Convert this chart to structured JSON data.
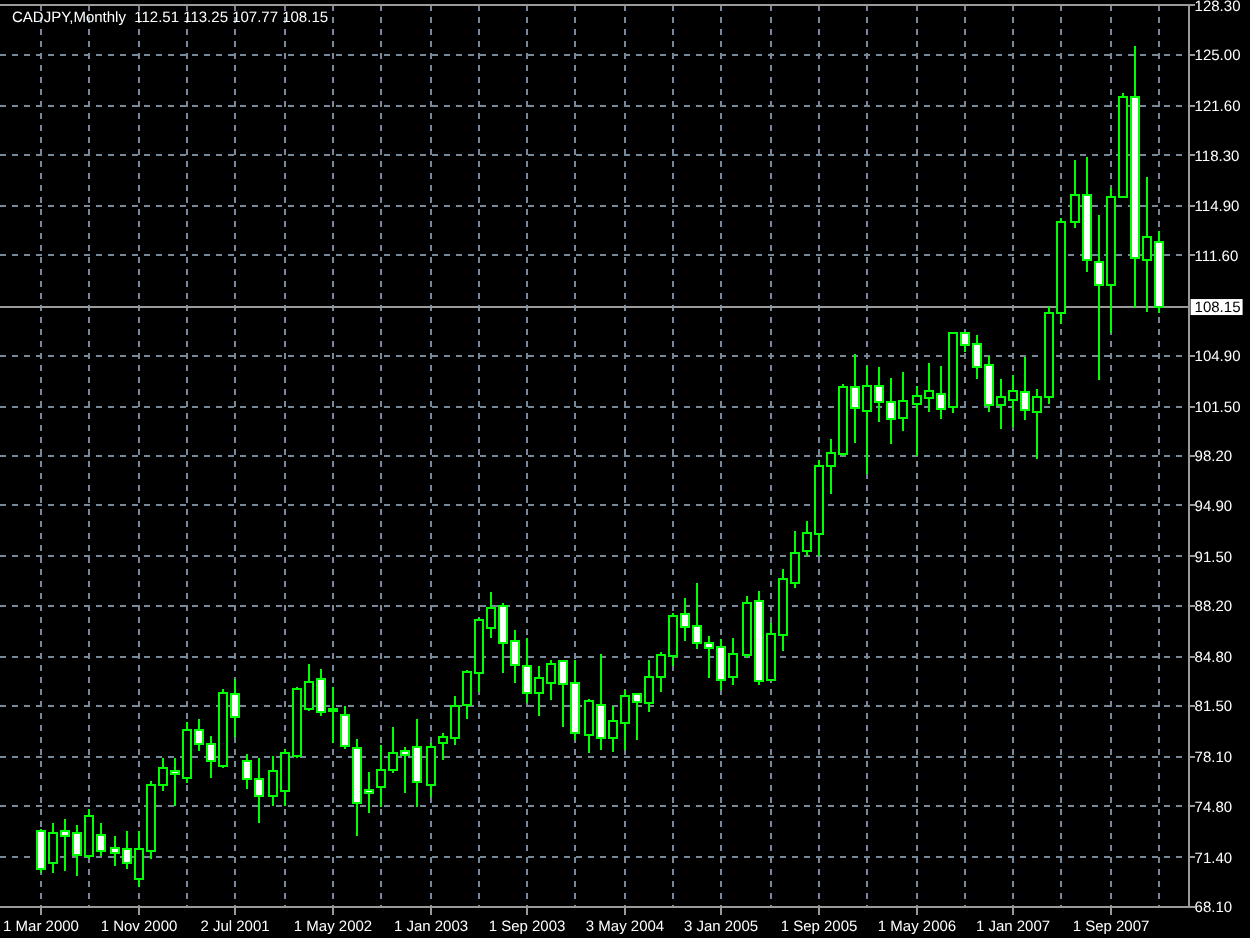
{
  "chart_data": {
    "type": "candlestick",
    "title": "CADJPY,Monthly  112.51 113.25 107.77 108.15",
    "categories": [
      "1 Mar 2000",
      null,
      null,
      null,
      null,
      null,
      null,
      null,
      "1 Nov 2000",
      null,
      null,
      null,
      null,
      null,
      null,
      null,
      "2 Jul 2001",
      null,
      null,
      null,
      null,
      null,
      null,
      null,
      "1 May 2002",
      null,
      null,
      null,
      null,
      null,
      null,
      null,
      "1 Jan 2003",
      null,
      null,
      null,
      null,
      null,
      null,
      null,
      "1 Sep 2003",
      null,
      null,
      null,
      null,
      null,
      null,
      null,
      "3 May 2004",
      null,
      null,
      null,
      null,
      null,
      null,
      null,
      "3 Jan 2005",
      null,
      null,
      null,
      null,
      null,
      null,
      null,
      "1 Sep 2005",
      null,
      null,
      null,
      null,
      null,
      null,
      null,
      "1 May 2006",
      null,
      null,
      null,
      null,
      null,
      null,
      null,
      "1 Jan 2007",
      null,
      null,
      null,
      null,
      null,
      null,
      null,
      "1 Sep 2007",
      null,
      null,
      null,
      null
    ],
    "ohlc": [
      [
        73.13,
        73.3,
        70.36,
        70.59
      ],
      [
        71.03,
        73.71,
        70.36,
        73.04
      ],
      [
        73.13,
        73.93,
        70.5,
        72.82
      ],
      [
        73.04,
        73.57,
        70.14,
        71.57
      ],
      [
        71.48,
        74.6,
        71.26,
        74.15
      ],
      [
        72.9,
        73.71,
        71.48,
        71.79
      ],
      [
        72.01,
        72.82,
        70.81,
        71.7
      ],
      [
        71.92,
        73.13,
        70.59,
        71.03
      ],
      [
        69.92,
        73.13,
        69.38,
        71.92
      ],
      [
        71.84,
        76.47,
        71.26,
        76.25
      ],
      [
        76.25,
        78.03,
        75.8,
        77.36
      ],
      [
        77.19,
        78.03,
        74.82,
        76.96
      ],
      [
        76.7,
        80.4,
        76.38,
        79.91
      ],
      [
        79.91,
        80.62,
        78.48,
        78.93
      ],
      [
        78.93,
        79.5,
        76.7,
        77.81
      ],
      [
        77.5,
        82.63,
        77.36,
        82.4
      ],
      [
        82.31,
        83.3,
        79.42,
        80.75
      ],
      [
        77.81,
        78.3,
        75.94,
        76.61
      ],
      [
        76.61,
        78.03,
        73.71,
        75.49
      ],
      [
        75.49,
        78.17,
        74.82,
        77.14
      ],
      [
        75.8,
        78.61,
        74.82,
        78.39
      ],
      [
        78.17,
        82.76,
        78.03,
        82.63
      ],
      [
        81.29,
        84.28,
        81.15,
        83.07
      ],
      [
        83.3,
        83.96,
        80.84,
        81.07
      ],
      [
        81.29,
        82.76,
        79.06,
        81.15
      ],
      [
        80.93,
        81.51,
        78.61,
        78.84
      ],
      [
        78.7,
        79.28,
        72.82,
        75.05
      ],
      [
        75.89,
        77.1,
        74.33,
        75.67
      ],
      [
        76.12,
        78.88,
        74.78,
        77.23
      ],
      [
        77.23,
        80.13,
        77.01,
        78.35
      ],
      [
        78.48,
        78.79,
        75.67,
        78.21
      ],
      [
        78.79,
        80.66,
        74.78,
        76.43
      ],
      [
        76.25,
        79.01,
        75.45,
        78.79
      ],
      [
        79.01,
        79.68,
        77.9,
        79.46
      ],
      [
        79.37,
        82.14,
        78.88,
        81.47
      ],
      [
        81.56,
        83.92,
        80.66,
        83.79
      ],
      [
        83.7,
        87.35,
        82.45,
        87.26
      ],
      [
        86.73,
        89.14,
        86.02,
        88.07
      ],
      [
        88.16,
        88.38,
        83.7,
        85.7
      ],
      [
        85.84,
        86.6,
        83.03,
        84.23
      ],
      [
        84.14,
        86.02,
        81.69,
        82.36
      ],
      [
        82.36,
        84.14,
        80.8,
        83.38
      ],
      [
        83.03,
        84.59,
        81.91,
        84.28
      ],
      [
        84.5,
        84.59,
        80.13,
        82.98
      ],
      [
        83.03,
        84.59,
        79.24,
        79.68
      ],
      [
        79.55,
        82.0,
        78.35,
        81.82
      ],
      [
        81.6,
        84.95,
        78.57,
        79.33
      ],
      [
        79.33,
        81.47,
        78.44,
        80.49
      ],
      [
        80.35,
        82.58,
        78.57,
        82.14
      ],
      [
        82.27,
        82.36,
        79.24,
        81.78
      ],
      [
        81.69,
        84.59,
        81.11,
        83.47
      ],
      [
        83.47,
        85.12,
        82.45,
        84.9
      ],
      [
        84.81,
        87.71,
        84.14,
        87.49
      ],
      [
        87.64,
        88.71,
        85.86,
        86.75
      ],
      [
        86.84,
        89.74,
        85.28,
        85.73
      ],
      [
        85.73,
        86.17,
        83.36,
        85.37
      ],
      [
        85.41,
        85.95,
        82.6,
        83.27
      ],
      [
        83.41,
        86.04,
        82.92,
        84.97
      ],
      [
        84.92,
        88.85,
        84.7,
        88.4
      ],
      [
        88.54,
        89.16,
        82.92,
        83.18
      ],
      [
        83.27,
        87.06,
        83.14,
        86.31
      ],
      [
        86.26,
        90.63,
        85.15,
        89.96
      ],
      [
        89.74,
        93.17,
        89.38,
        91.75
      ],
      [
        91.83,
        93.84,
        91.52,
        93.08
      ],
      [
        92.99,
        97.9,
        91.52,
        97.54
      ],
      [
        97.54,
        99.33,
        95.63,
        98.43
      ],
      [
        98.35,
        102.98,
        98.21,
        102.8
      ],
      [
        102.8,
        105.03,
        99.1,
        101.42
      ],
      [
        101.2,
        104.23,
        97.01,
        102.89
      ],
      [
        102.89,
        104.14,
        100.44,
        101.78
      ],
      [
        101.78,
        103.43,
        98.97,
        100.66
      ],
      [
        100.75,
        103.79,
        99.86,
        101.87
      ],
      [
        101.65,
        102.89,
        98.21,
        102.22
      ],
      [
        102.09,
        104.41,
        101.11,
        102.54
      ],
      [
        102.36,
        104.23,
        100.66,
        101.33
      ],
      [
        101.46,
        106.5,
        101.05,
        106.41
      ],
      [
        106.41,
        106.5,
        105.16,
        105.6
      ],
      [
        105.69,
        106.27,
        103.37,
        104.13
      ],
      [
        104.27,
        104.85,
        101.14,
        101.59
      ],
      [
        101.59,
        103.37,
        100.03,
        102.13
      ],
      [
        101.95,
        103.6,
        100.16,
        102.57
      ],
      [
        102.48,
        104.8,
        100.61,
        101.28
      ],
      [
        101.14,
        102.7,
        98.02,
        102.13
      ],
      [
        102.13,
        108.19,
        101.68,
        107.74
      ],
      [
        107.74,
        114.08,
        107.03,
        113.85
      ],
      [
        113.85,
        118.0,
        113.41,
        115.64
      ],
      [
        115.64,
        118.18,
        110.51,
        111.27
      ],
      [
        111.18,
        114.3,
        103.28,
        109.62
      ],
      [
        109.62,
        116.08,
        106.41,
        115.5
      ],
      [
        115.5,
        122.46,
        115.41,
        122.19
      ],
      [
        122.19,
        125.58,
        108.06,
        111.4
      ],
      [
        111.27,
        116.84,
        107.83,
        112.83
      ],
      [
        112.51,
        113.25,
        107.77,
        108.15
      ]
    ],
    "color": "#00ff00",
    "colors": [
      "#ffffff",
      "#000000",
      "#ffffff",
      "#ffffff",
      "#000000",
      "#ffffff",
      "#ffffff",
      "#ffffff",
      "#000000",
      "#000000",
      "#000000",
      "#ffffff",
      "#000000",
      "#ffffff",
      "#ffffff",
      "#000000",
      "#ffffff",
      "#ffffff",
      "#ffffff",
      "#000000",
      "#000000",
      "#000000",
      "#000000",
      "#ffffff",
      "#ffffff",
      "#ffffff",
      "#ffffff",
      "#ffffff",
      "#000000",
      "#000000",
      "#ffffff",
      "#ffffff",
      "#000000",
      "#000000",
      "#000000",
      "#000000",
      "#000000",
      "#000000",
      "#ffffff",
      "#ffffff",
      "#ffffff",
      "#000000",
      "#000000",
      "#ffffff",
      "#ffffff",
      "#000000",
      "#ffffff",
      "#000000",
      "#000000",
      "#ffffff",
      "#000000",
      "#000000",
      "#000000",
      "#ffffff",
      "#ffffff",
      "#ffffff",
      "#ffffff",
      "#000000",
      "#000000",
      "#ffffff",
      "#000000",
      "#000000",
      "#000000",
      "#000000",
      "#000000",
      "#000000",
      "#000000",
      "#ffffff",
      "#000000",
      "#ffffff",
      "#ffffff",
      "#000000",
      "#000000",
      "#000000",
      "#ffffff",
      "#000000",
      "#ffffff",
      "#ffffff",
      "#ffffff",
      "#000000",
      "#000000",
      "#ffffff",
      "#000000",
      "#000000",
      "#000000",
      "#000000",
      "#ffffff",
      "#ffffff",
      "#000000",
      "#000000",
      "#ffffff",
      "#000000",
      "#ffffff"
    ],
    "ylim": [
      68.1,
      128.3
    ],
    "yticks": [
      {
        "value": 68.1,
        "label": "68.10"
      },
      {
        "value": 71.4,
        "label": "71.40"
      },
      {
        "value": 74.8,
        "label": "74.80"
      },
      {
        "value": 78.1,
        "label": "78.10"
      },
      {
        "value": 81.5,
        "label": "81.50"
      },
      {
        "value": 84.8,
        "label": "84.80"
      },
      {
        "value": 88.2,
        "label": "88.20"
      },
      {
        "value": 91.5,
        "label": "91.50"
      },
      {
        "value": 94.9,
        "label": "94.90"
      },
      {
        "value": 98.2,
        "label": "98.20"
      },
      {
        "value": 101.5,
        "label": "101.50"
      },
      {
        "value": 104.9,
        "label": "104.90"
      },
      {
        "value": 111.6,
        "label": "111.60"
      },
      {
        "value": 114.9,
        "label": "114.90"
      },
      {
        "value": 118.3,
        "label": "118.30"
      },
      {
        "value": 121.6,
        "label": "121.60"
      },
      {
        "value": 125.0,
        "label": "125.00"
      },
      {
        "value": 128.3,
        "label": "128.30"
      }
    ],
    "grid": true,
    "ref_lines": [
      {
        "axis": "y",
        "value": 108.15,
        "label": "108.15",
        "color": "#9a9a9a"
      }
    ]
  }
}
